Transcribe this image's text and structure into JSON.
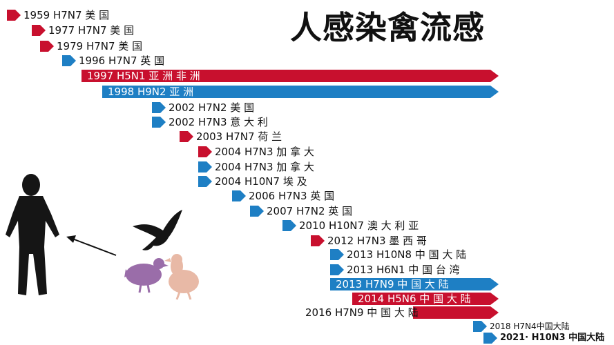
{
  "title": "人感染禽流感",
  "colors": {
    "red": "#c8102e",
    "blue": "#1e7fc4"
  },
  "events": [
    {
      "label": "1959 H7N7 美 国",
      "color": "red"
    },
    {
      "label": "1977 H7N7 美 国",
      "color": "red"
    },
    {
      "label": "1979 H7N7 美 国",
      "color": "red"
    },
    {
      "label": "1996 H7N7 英 国",
      "color": "blue"
    },
    {
      "label": "1997 H5N1 亚 洲 非 洲",
      "color": "red",
      "bar": true
    },
    {
      "label": "1998 H9N2 亚 洲",
      "color": "blue",
      "bar": true
    },
    {
      "label": "2002 H7N2 美 国",
      "color": "blue"
    },
    {
      "label": "2002 H7N3 意 大 利",
      "color": "blue"
    },
    {
      "label": "2003 H7N7 荷 兰",
      "color": "red"
    },
    {
      "label": "2004 H7N3 加 拿 大",
      "color": "red"
    },
    {
      "label": "2004 H7N3 加 拿 大",
      "color": "blue"
    },
    {
      "label": "2004 H10N7 埃 及",
      "color": "blue"
    },
    {
      "label": "2006 H7N3 英 国",
      "color": "blue"
    },
    {
      "label": "2007 H7N2 英 国",
      "color": "blue"
    },
    {
      "label": "2010 H10N7 澳 大 利 亚",
      "color": "blue"
    },
    {
      "label": "2012 H7N3 墨 西 哥",
      "color": "red"
    },
    {
      "label": "2013 H10N8 中 国 大 陆",
      "color": "blue"
    },
    {
      "label": "2013 H6N1 中 国 台 湾",
      "color": "blue"
    },
    {
      "label": "2013 H7N9 中 国 大 陆",
      "color": "blue",
      "bar": true
    },
    {
      "label": "2014 H5N6 中 国 大 陆",
      "color": "red",
      "bar": true
    },
    {
      "label": "2016 H7N9 中 国 大 陆",
      "color": "red",
      "bar": true
    },
    {
      "label": "2018 H7N4中国大陆",
      "color": "blue"
    },
    {
      "label": "2021· H10N3 中国大陆",
      "color": "blue"
    }
  ]
}
